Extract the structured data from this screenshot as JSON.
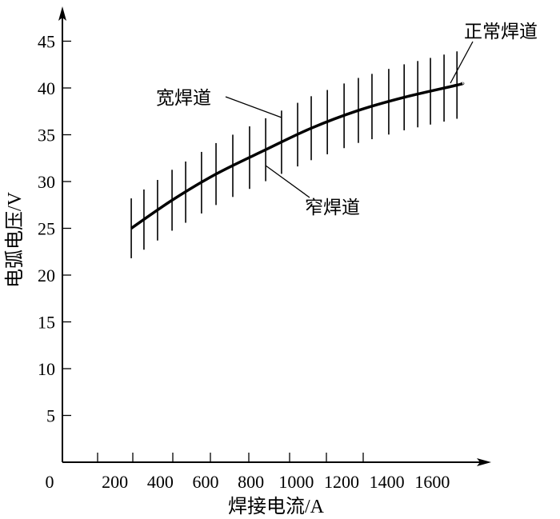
{
  "chart_data": {
    "type": "line",
    "title": "",
    "xlabel": "焊接电流/A",
    "ylabel": "电弧电压/V",
    "origin_label": "0",
    "x_ticks": [
      200,
      400,
      600,
      800,
      1000,
      1200,
      1400,
      1600
    ],
    "x_tick_labels": [
      "200",
      "400",
      "600",
      "800",
      "1000",
      "1200",
      "1400",
      "1600"
    ],
    "y_ticks": [
      5,
      10,
      15,
      20,
      25,
      30,
      35,
      40,
      45
    ],
    "y_tick_labels": [
      "5",
      "10",
      "15",
      "20",
      "25",
      "30",
      "35",
      "40",
      "45"
    ],
    "xlim": [
      0,
      1750
    ],
    "ylim": [
      0,
      48
    ],
    "grid": false,
    "series": [
      {
        "name": "正常焊道",
        "x": [
          272,
          452,
          646,
          865,
          1066,
          1274,
          1476,
          1708,
          1733
        ],
        "y": [
          25.0,
          28.0,
          30.8,
          33.4,
          35.7,
          37.6,
          39.0,
          40.3,
          40.5
        ]
      }
    ],
    "range_bars": {
      "currents": [
        272,
        328,
        388,
        452,
        512,
        582,
        646,
        720,
        794,
        865,
        935,
        1006,
        1066,
        1137,
        1211,
        1274,
        1334,
        1408,
        1476,
        1536,
        1592,
        1652,
        1709
      ],
      "half_range_start_V": 3.2,
      "half_range_end_V": 3.6
    },
    "annotations": [
      {
        "text": "宽焊道",
        "points_to": "upper end of voltage range"
      },
      {
        "text": "窄焊道",
        "points_to": "lower end of voltage range"
      },
      {
        "text": "正常焊道",
        "points_to": "curve"
      }
    ],
    "colors": {
      "line": "#000000",
      "background": "#ffffff"
    }
  }
}
